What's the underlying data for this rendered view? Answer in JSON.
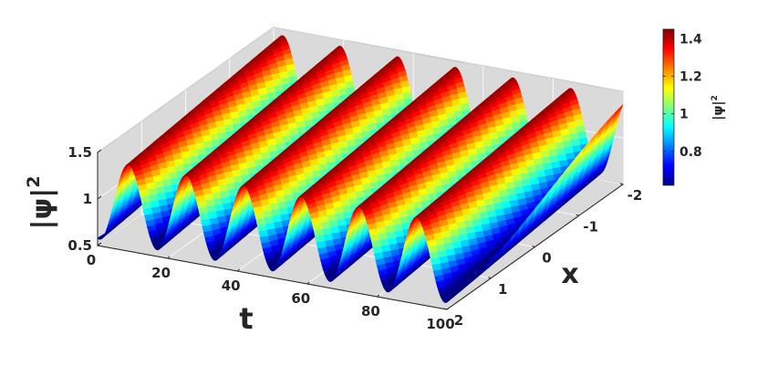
{
  "chart_data": {
    "type": "surface3d",
    "xlabel": "t",
    "ylabel": "x",
    "zlabel": "|ψ|",
    "zlabel_sup": "2",
    "xlim": [
      0,
      100
    ],
    "ylim": [
      -2,
      2
    ],
    "zlim": [
      0.5,
      1.5
    ],
    "x_ticks": [
      "0",
      "20",
      "40",
      "60",
      "80",
      "100"
    ],
    "x_tick_values": [
      0,
      20,
      40,
      60,
      80,
      100
    ],
    "y_ticks": [
      "-2",
      "-1",
      "0",
      "1",
      "2"
    ],
    "y_tick_values": [
      -2,
      -1,
      0,
      1,
      2
    ],
    "z_ticks": [
      "0.5",
      "1",
      "1.5"
    ],
    "z_tick_values": [
      0.5,
      1,
      1.5
    ],
    "surface": {
      "mean": 1.0,
      "amplitude": 0.43,
      "period_t": 16.5,
      "x_slope": 0.38,
      "phase": 0.6,
      "peak_t_at_x_minus2": [
        17,
        33,
        50,
        66,
        83,
        100
      ],
      "colormap": "jet",
      "shading": "interp"
    },
    "colorbar": {
      "label": "|ψ|",
      "label_sup": "2",
      "range": [
        0.62,
        1.45
      ],
      "ticks": [
        "0.8",
        "1",
        "1.2",
        "1.4"
      ],
      "tick_values": [
        0.8,
        1.0,
        1.2,
        1.4
      ],
      "position": "right"
    },
    "grid": true,
    "background": "#dadada"
  }
}
